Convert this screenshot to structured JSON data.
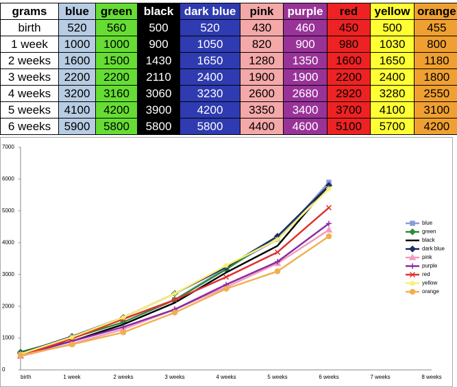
{
  "table": {
    "header": [
      "grams",
      "blue",
      "green",
      "black",
      "dark blue",
      "pink",
      "purple",
      "red",
      "yellow",
      "orange"
    ],
    "colors": [
      "#ffffff",
      "#b8cce4",
      "#66dd33",
      "#000000",
      "#2f3bb0",
      "#f4a8a8",
      "#993399",
      "#ee2222",
      "#ffff33",
      "#f0a030"
    ],
    "text_colors": [
      "#000000",
      "#000000",
      "#000000",
      "#ffffff",
      "#ffffff",
      "#000000",
      "#ffffff",
      "#000000",
      "#000000",
      "#000000"
    ],
    "rows": [
      [
        "birth",
        520,
        560,
        500,
        520,
        430,
        460,
        450,
        500,
        455
      ],
      [
        "1 week",
        1000,
        1000,
        900,
        1050,
        820,
        900,
        980,
        1030,
        800
      ],
      [
        "2 weeks",
        1600,
        1500,
        1430,
        1650,
        1280,
        1350,
        1600,
        1650,
        1180
      ],
      [
        "3 weeks",
        2200,
        2200,
        2110,
        2400,
        1900,
        1900,
        2200,
        2400,
        1800
      ],
      [
        "4 weeks",
        3200,
        3160,
        3060,
        3230,
        2600,
        2680,
        2920,
        3280,
        2550
      ],
      [
        "5 weeks",
        4100,
        4200,
        3900,
        4200,
        3350,
        3400,
        3700,
        4100,
        3100
      ],
      [
        "6 weeks",
        5900,
        5800,
        5800,
        5800,
        4400,
        4600,
        5100,
        5700,
        4200
      ]
    ]
  },
  "chart_data": {
    "type": "line",
    "categories": [
      "birth",
      "1 week",
      "2 weeks",
      "3 weeks",
      "4 weeks",
      "5 weeks",
      "6 weeks",
      "7 weeks",
      "8 weeks"
    ],
    "ylim": [
      0,
      7000
    ],
    "yticks": [
      0,
      1000,
      2000,
      3000,
      4000,
      5000,
      6000,
      7000
    ],
    "series": [
      {
        "name": "blue",
        "color": "#8a9cd8",
        "marker": "square",
        "values": [
          520,
          1000,
          1600,
          2200,
          3200,
          4100,
          5900,
          null,
          null
        ]
      },
      {
        "name": "green",
        "color": "#2e8b3a",
        "marker": "diamond",
        "values": [
          560,
          1000,
          1500,
          2200,
          3160,
          4200,
          5800,
          null,
          null
        ]
      },
      {
        "name": "black",
        "color": "#000000",
        "marker": "none",
        "values": [
          500,
          900,
          1430,
          2110,
          3060,
          3900,
          5800,
          null,
          null
        ]
      },
      {
        "name": "dark blue",
        "color": "#1f2d6b",
        "marker": "diamond",
        "values": [
          520,
          1050,
          1650,
          2400,
          3230,
          4200,
          5800,
          null,
          null
        ]
      },
      {
        "name": "pink",
        "color": "#f49ac0",
        "marker": "triangle",
        "values": [
          430,
          820,
          1280,
          1900,
          2600,
          3350,
          4400,
          null,
          null
        ]
      },
      {
        "name": "purple",
        "color": "#8a2aa0",
        "marker": "plus",
        "values": [
          460,
          900,
          1350,
          1900,
          2680,
          3400,
          4600,
          null,
          null
        ]
      },
      {
        "name": "red",
        "color": "#e03030",
        "marker": "x",
        "values": [
          450,
          980,
          1600,
          2200,
          2920,
          3700,
          5100,
          null,
          null
        ]
      },
      {
        "name": "yellow",
        "color": "#f8f070",
        "marker": "star",
        "values": [
          500,
          1030,
          1650,
          2400,
          3280,
          4100,
          5700,
          null,
          null
        ]
      },
      {
        "name": "orange",
        "color": "#f0b050",
        "marker": "circle",
        "values": [
          455,
          800,
          1180,
          1800,
          2550,
          3100,
          4200,
          null,
          null
        ]
      }
    ]
  }
}
